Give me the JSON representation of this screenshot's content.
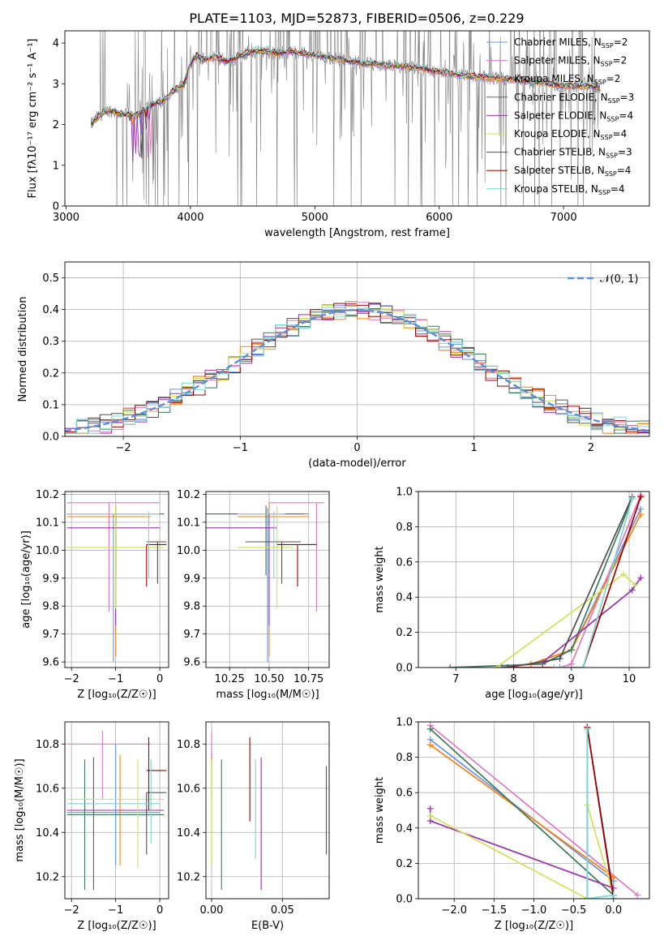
{
  "figure": {
    "title": "PLATE=1103, MJD=52873, FIBERID=0506, z=0.229"
  },
  "models": [
    {
      "name": "Chabrier MILES",
      "nssp": "2",
      "color": "#6495ed"
    },
    {
      "name": "Salpeter MILES",
      "nssp": "2",
      "color": "#e377c2"
    },
    {
      "name": "Kroupa MILES",
      "nssp": "2",
      "color": "#ff7f0e"
    },
    {
      "name": "Chabrier ELODIE",
      "nssp": "3",
      "color": "#3b7a57"
    },
    {
      "name": "Salpeter ELODIE",
      "nssp": "4",
      "color": "#9b30b0"
    },
    {
      "name": "Kroupa ELODIE",
      "nssp": "4",
      "color": "#d4e157"
    },
    {
      "name": "Chabrier STELIB",
      "nssp": "3",
      "color": "#505050"
    },
    {
      "name": "Salpeter STELIB",
      "nssp": "4",
      "color": "#a00000"
    },
    {
      "name": "Kroupa STELIB",
      "nssp": "4",
      "color": "#7fd6d6"
    }
  ],
  "chart_data": [
    {
      "id": "spectrum",
      "type": "line",
      "xlabel": "wavelength [Angstrom, rest frame]",
      "ylabel": "Flux [fλ10⁻¹⁷ erg cm⁻² s⁻¹ A⁻¹]",
      "xlim": [
        2990,
        7690
      ],
      "ylim": [
        0,
        4.3
      ],
      "xticks": [
        3000,
        4000,
        5000,
        6000,
        7000
      ],
      "yticks": [
        0,
        1,
        2,
        3,
        4
      ],
      "data_color": "#808080",
      "model_shape": [
        [
          3200,
          2.0
        ],
        [
          3260,
          2.2
        ],
        [
          3300,
          2.3
        ],
        [
          3350,
          2.35
        ],
        [
          3400,
          2.3
        ],
        [
          3450,
          2.25
        ],
        [
          3500,
          2.25
        ],
        [
          3550,
          2.2
        ],
        [
          3600,
          2.3
        ],
        [
          3650,
          2.4
        ],
        [
          3700,
          2.5
        ],
        [
          3750,
          2.55
        ],
        [
          3800,
          2.6
        ],
        [
          3850,
          2.8
        ],
        [
          3900,
          2.9
        ],
        [
          3950,
          3.0
        ],
        [
          4000,
          3.5
        ],
        [
          4050,
          3.7
        ],
        [
          4100,
          3.6
        ],
        [
          4200,
          3.65
        ],
        [
          4300,
          3.55
        ],
        [
          4400,
          3.7
        ],
        [
          4500,
          3.8
        ],
        [
          4600,
          3.8
        ],
        [
          4700,
          3.75
        ],
        [
          4800,
          3.8
        ],
        [
          4900,
          3.75
        ],
        [
          5000,
          3.7
        ],
        [
          5200,
          3.6
        ],
        [
          5400,
          3.5
        ],
        [
          5600,
          3.45
        ],
        [
          5800,
          3.4
        ],
        [
          6000,
          3.3
        ],
        [
          6200,
          3.2
        ],
        [
          6400,
          3.15
        ],
        [
          6600,
          3.1
        ],
        [
          6800,
          3.05
        ],
        [
          7000,
          2.95
        ],
        [
          7200,
          2.95
        ],
        [
          7300,
          2.9
        ]
      ]
    },
    {
      "id": "residuals",
      "type": "histogram",
      "xlabel": "(data-model)/error",
      "ylabel": "Normed distribution",
      "xlim": [
        -2.5,
        2.5
      ],
      "ylim": [
        0,
        0.55
      ],
      "xticks": [
        -2,
        -1,
        0,
        1,
        2
      ],
      "yticks": [
        0.0,
        0.1,
        0.2,
        0.3,
        0.4,
        0.5
      ],
      "legend": "𝒩(0, 1)",
      "gaussian_color": "#5b8fd9",
      "bin_width": 0.1
    },
    {
      "id": "age-vs-Z",
      "type": "errorbar",
      "xlabel": "Z [log₁₀(Z/Z☉)]",
      "ylabel": "age  [log₁₀(age/yr)]",
      "xlim": [
        -2.15,
        0.2
      ],
      "ylim": [
        9.58,
        10.21
      ],
      "xticks": [
        -2,
        -1,
        0
      ],
      "yticks": [
        9.6,
        9.7,
        9.8,
        9.9,
        10.0,
        10.1,
        10.2
      ],
      "points": [
        {
          "model": 0,
          "x": -1.05,
          "y": 10.13,
          "xlo": -2.1,
          "xhi": 0.0,
          "ylo": 9.6,
          "yhi": 10.13
        },
        {
          "model": 1,
          "x": -1.15,
          "y": 10.17,
          "xlo": -2.1,
          "xhi": 0.0,
          "ylo": 9.78,
          "yhi": 10.17
        },
        {
          "model": 2,
          "x": -1.0,
          "y": 10.12,
          "xlo": -2.1,
          "xhi": -0.2,
          "ylo": 9.62,
          "yhi": 10.16
        },
        {
          "model": 3,
          "x": -1.0,
          "y": 10.13,
          "xlo": -2.1,
          "xhi": 0.1,
          "ylo": 9.91,
          "yhi": 10.16
        },
        {
          "model": 4,
          "x": -1.0,
          "y": 10.08,
          "xlo": -2.1,
          "xhi": 0.0,
          "ylo": 9.73,
          "yhi": 10.13
        },
        {
          "model": 5,
          "x": -1.0,
          "y": 10.01,
          "xlo": -2.1,
          "xhi": 0.1,
          "ylo": 9.79,
          "yhi": 10.16
        },
        {
          "model": 6,
          "x": -0.05,
          "y": 10.03,
          "xlo": -0.3,
          "xhi": 0.15,
          "ylo": 9.88,
          "yhi": 10.03
        },
        {
          "model": 7,
          "x": -0.3,
          "y": 10.02,
          "xlo": -0.3,
          "xhi": 0.15,
          "ylo": 9.87,
          "yhi": 10.02
        },
        {
          "model": 8,
          "x": -0.25,
          "y": 10.13,
          "xlo": -2.1,
          "xhi": 0.0,
          "ylo": 9.9,
          "yhi": 10.14
        }
      ]
    },
    {
      "id": "age-vs-mass",
      "type": "errorbar",
      "xlabel": "mass [log₁₀(M/M☉)]",
      "ylabel": "",
      "xlim": [
        10.1,
        10.88
      ],
      "ylim": [
        9.58,
        10.21
      ],
      "xticks": [
        10.25,
        10.5,
        10.75
      ],
      "xticklabels": [
        "10.25",
        "10.50",
        "10.75"
      ],
      "yticks": [
        9.6,
        9.7,
        9.8,
        9.9,
        10.0,
        10.1,
        10.2
      ],
      "points": [
        {
          "model": 0,
          "x": 10.49,
          "y": 10.13,
          "xlo": 10.1,
          "xhi": 10.75,
          "ylo": 9.6,
          "yhi": 10.15
        },
        {
          "model": 1,
          "x": 10.8,
          "y": 10.17,
          "xlo": 10.5,
          "xhi": 10.85,
          "ylo": 9.78,
          "yhi": 10.17
        },
        {
          "model": 2,
          "x": 10.5,
          "y": 10.12,
          "xlo": 10.3,
          "xhi": 10.75,
          "ylo": 9.62,
          "yhi": 10.17
        },
        {
          "model": 3,
          "x": 10.48,
          "y": 10.13,
          "xlo": 10.1,
          "xhi": 10.72,
          "ylo": 9.91,
          "yhi": 10.16
        },
        {
          "model": 4,
          "x": 10.5,
          "y": 10.08,
          "xlo": 10.1,
          "xhi": 10.55,
          "ylo": 9.73,
          "yhi": 10.13
        },
        {
          "model": 5,
          "x": 10.55,
          "y": 10.01,
          "xlo": 10.3,
          "xhi": 10.65,
          "ylo": 9.79,
          "yhi": 10.16
        },
        {
          "model": 6,
          "x": 10.58,
          "y": 10.03,
          "xlo": 10.35,
          "xhi": 10.7,
          "ylo": 9.88,
          "yhi": 10.03
        },
        {
          "model": 7,
          "x": 10.68,
          "y": 10.02,
          "xlo": 10.55,
          "xhi": 10.8,
          "ylo": 9.87,
          "yhi": 10.02
        },
        {
          "model": 8,
          "x": 10.53,
          "y": 10.13,
          "xlo": 10.3,
          "xhi": 10.6,
          "ylo": 9.9,
          "yhi": 10.14
        }
      ]
    },
    {
      "id": "massweight-vs-age",
      "type": "line",
      "xlabel": "age  [log₁₀(age/yr)]",
      "ylabel": "mass weight",
      "xlim": [
        6.35,
        10.35
      ],
      "ylim": [
        0,
        1
      ],
      "xticks": [
        7,
        8,
        9,
        10
      ],
      "yticks": [
        0.0,
        0.2,
        0.4,
        0.6,
        0.8,
        1.0
      ],
      "series": [
        {
          "model": 0,
          "x": [
            8.5,
            9.0,
            10.2
          ],
          "y": [
            0.02,
            0.1,
            0.9
          ]
        },
        {
          "model": 1,
          "x": [
            8.8,
            9.0,
            10.2
          ],
          "y": [
            0.0,
            0.02,
            0.98
          ]
        },
        {
          "model": 2,
          "x": [
            8.3,
            9.0,
            10.2
          ],
          "y": [
            0.02,
            0.1,
            0.87
          ]
        },
        {
          "model": 3,
          "x": [
            6.9,
            8.5,
            9.0,
            10.05
          ],
          "y": [
            0.0,
            0.02,
            0.1,
            0.96
          ]
        },
        {
          "model": 4,
          "x": [
            7.8,
            8.5,
            10.05,
            10.2
          ],
          "y": [
            0.0,
            0.03,
            0.44,
            0.51
          ]
        },
        {
          "model": 5,
          "x": [
            7.7,
            9.9,
            10.1
          ],
          "y": [
            0.0,
            0.53,
            0.47
          ]
        },
        {
          "model": 6,
          "x": [
            7.9,
            8.8,
            10.05
          ],
          "y": [
            0.0,
            0.05,
            0.97
          ]
        },
        {
          "model": 7,
          "x": [
            8.0,
            9.2,
            10.2
          ],
          "y": [
            0.0,
            0.0,
            0.97
          ]
        },
        {
          "model": 8,
          "x": [
            8.7,
            9.2,
            10.05
          ],
          "y": [
            0.0,
            0.0,
            0.96
          ]
        }
      ]
    },
    {
      "id": "mass-vs-Z",
      "type": "errorbar",
      "xlabel": "Z [log₁₀(Z/Z☉)]",
      "ylabel": "mass [log₁₀(M/M☉)]",
      "xlim": [
        -2.15,
        0.2
      ],
      "ylim": [
        10.1,
        10.9
      ],
      "xticks": [
        -2,
        -1,
        0
      ],
      "yticks": [
        10.2,
        10.4,
        10.6,
        10.8
      ],
      "points": [
        {
          "model": 0,
          "x": -1.0,
          "y": 10.49,
          "xlo": -2.1,
          "xhi": 0.0,
          "ylo": 10.25,
          "yhi": 10.8
        },
        {
          "model": 1,
          "x": -1.3,
          "y": 10.8,
          "xlo": -2.1,
          "xhi": -0.2,
          "ylo": 10.55,
          "yhi": 10.86
        },
        {
          "model": 2,
          "x": -0.9,
          "y": 10.5,
          "xlo": -2.1,
          "xhi": -0.2,
          "ylo": 10.25,
          "yhi": 10.75
        },
        {
          "model": 3,
          "x": -1.7,
          "y": 10.48,
          "xlo": -2.1,
          "xhi": 0.1,
          "ylo": 10.14,
          "yhi": 10.73
        },
        {
          "model": 4,
          "x": -1.5,
          "y": 10.5,
          "xlo": -2.1,
          "xhi": 0.1,
          "ylo": 10.14,
          "yhi": 10.74
        },
        {
          "model": 5,
          "x": -0.5,
          "y": 10.55,
          "xlo": -2.1,
          "xhi": 0.1,
          "ylo": 10.24,
          "yhi": 10.73
        },
        {
          "model": 6,
          "x": -0.3,
          "y": 10.58,
          "xlo": -0.3,
          "xhi": 0.15,
          "ylo": 10.3,
          "yhi": 10.58
        },
        {
          "model": 7,
          "x": -0.25,
          "y": 10.68,
          "xlo": -0.3,
          "xhi": 0.15,
          "ylo": 10.5,
          "yhi": 10.83
        },
        {
          "model": 8,
          "x": -0.2,
          "y": 10.53,
          "xlo": -2.1,
          "xhi": 0.0,
          "ylo": 10.35,
          "yhi": 10.73
        }
      ]
    },
    {
      "id": "mass-vs-EBV",
      "type": "errorbar",
      "xlabel": "E(B-V)",
      "ylabel": "",
      "xlim": [
        -0.004,
        0.083
      ],
      "ylim": [
        10.1,
        10.9
      ],
      "xticks": [
        0.0,
        0.05
      ],
      "xticklabels": [
        "0.00",
        "0.05"
      ],
      "yticks": [
        10.2,
        10.4,
        10.6,
        10.8
      ],
      "points": [
        {
          "model": 0,
          "x": 0.0,
          "y": 10.49,
          "ylo": 10.25,
          "yhi": 10.8
        },
        {
          "model": 1,
          "x": 0.0,
          "y": 10.8,
          "ylo": 10.55,
          "yhi": 10.86
        },
        {
          "model": 2,
          "x": 0.0,
          "y": 10.5,
          "ylo": 10.25,
          "yhi": 10.75
        },
        {
          "model": 3,
          "x": 0.007,
          "y": 10.48,
          "ylo": 10.14,
          "yhi": 10.73
        },
        {
          "model": 4,
          "x": 0.035,
          "y": 10.5,
          "ylo": 10.14,
          "yhi": 10.74
        },
        {
          "model": 5,
          "x": 0.0,
          "y": 10.55,
          "ylo": 10.25,
          "yhi": 10.73
        },
        {
          "model": 6,
          "x": 0.081,
          "y": 10.58,
          "ylo": 10.3,
          "yhi": 10.7
        },
        {
          "model": 7,
          "x": 0.027,
          "y": 10.68,
          "ylo": 10.45,
          "yhi": 10.83
        },
        {
          "model": 8,
          "x": 0.031,
          "y": 10.53,
          "ylo": 10.28,
          "yhi": 10.73
        }
      ]
    },
    {
      "id": "massweight-vs-Z",
      "type": "line",
      "xlabel": "Z [log₁₀(Z/Z☉)]",
      "ylabel": "mass weight",
      "xlim": [
        -2.45,
        0.45
      ],
      "ylim": [
        0,
        1
      ],
      "xticks": [
        -2.0,
        -1.5,
        -1.0,
        -0.5,
        0.0
      ],
      "xticklabels": [
        "−2.0",
        "−1.5",
        "−1.0",
        "−0.5",
        "0.0"
      ],
      "yticks": [
        0.0,
        0.2,
        0.4,
        0.6,
        0.8,
        1.0
      ],
      "series": [
        {
          "model": 0,
          "x": [
            -2.3,
            0.0
          ],
          "y": [
            0.9,
            0.1
          ]
        },
        {
          "model": 1,
          "x": [
            -2.3,
            0.3
          ],
          "y": [
            0.98,
            0.02
          ]
        },
        {
          "model": 2,
          "x": [
            -2.3,
            0.0
          ],
          "y": [
            0.87,
            0.12
          ]
        },
        {
          "model": 3,
          "x": [
            -2.3,
            0.0
          ],
          "y": [
            0.96,
            0.02
          ]
        },
        {
          "model": 4,
          "x": [
            -2.3,
            -2.3,
            0.0
          ],
          "y": [
            0.51,
            0.44,
            0.06
          ]
        },
        {
          "model": 5,
          "x": [
            -2.3,
            -0.33,
            -0.33,
            0.0
          ],
          "y": [
            0.47,
            0.0,
            0.53,
            0.02
          ]
        },
        {
          "model": 6,
          "x": [
            -0.33,
            -0.33,
            -0.33,
            0.0
          ],
          "y": [
            0.0,
            0.96,
            0.97,
            0.02
          ]
        },
        {
          "model": 7,
          "x": [
            -0.33,
            0.0
          ],
          "y": [
            0.97,
            0.0
          ]
        },
        {
          "model": 8,
          "x": [
            -0.33,
            -0.33,
            0.0
          ],
          "y": [
            0.96,
            0.0,
            0.02
          ]
        }
      ]
    }
  ]
}
